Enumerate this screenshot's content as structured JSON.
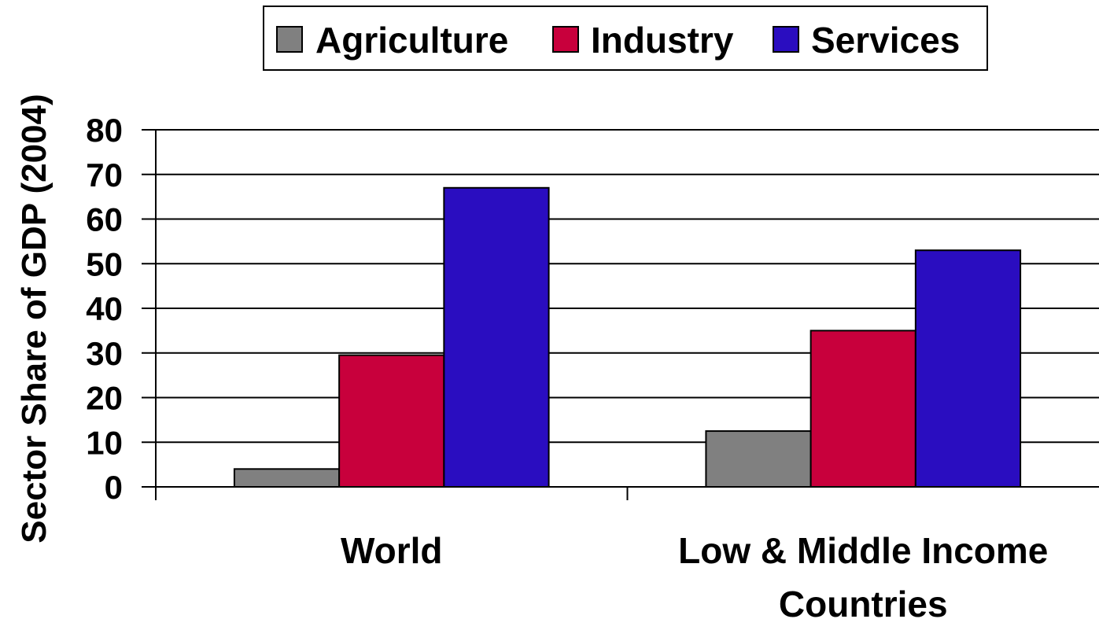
{
  "chart_data": {
    "type": "bar",
    "title": "",
    "xlabel": "",
    "ylabel": "Sector Share of GDP (2004)",
    "ylim": [
      0,
      80
    ],
    "yticks": [
      0,
      10,
      20,
      30,
      40,
      50,
      60,
      70,
      80
    ],
    "grid": true,
    "legend_position": "top",
    "categories": [
      [
        "World"
      ],
      [
        "Low & Middle Income",
        "Countries"
      ]
    ],
    "series": [
      {
        "name": "Agriculture",
        "color": "#808080",
        "values": [
          4,
          12.5
        ]
      },
      {
        "name": "Industry",
        "color": "#c8003c",
        "values": [
          29.5,
          35
        ]
      },
      {
        "name": "Services",
        "color": "#2a0dc0",
        "values": [
          67,
          53
        ]
      }
    ]
  }
}
